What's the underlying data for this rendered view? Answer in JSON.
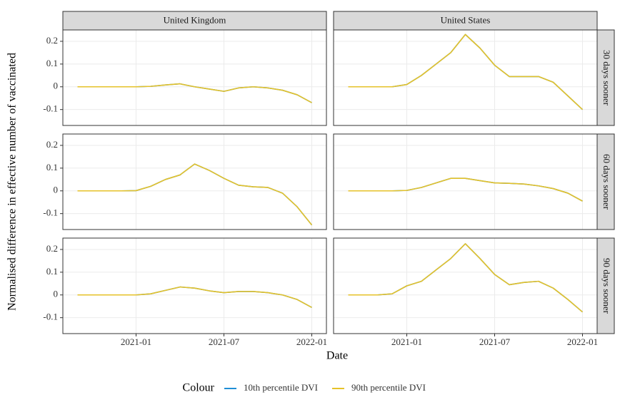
{
  "x_label": "Date",
  "y_label": "Normalised difference in effective number of vaccinated",
  "column_labels": [
    "United Kingdom",
    "United States"
  ],
  "row_labels": [
    "30 days sooner",
    "60 days sooner",
    "90 days sooner"
  ],
  "legend_title": "Colour",
  "chart_data": [
    {
      "type": "line",
      "x": [
        "2020-09",
        "2020-10",
        "2020-11",
        "2020-12",
        "2021-01",
        "2021-02",
        "2021-03",
        "2021-04",
        "2021-05",
        "2021-06",
        "2021-07",
        "2021-08",
        "2021-09",
        "2021-10",
        "2021-11",
        "2021-12",
        "2022-01"
      ],
      "xlim": [
        "2020-08",
        "2022-02"
      ],
      "xticks": [
        "2021-01",
        "2021-07",
        "2022-01"
      ],
      "ylim": [
        -0.17,
        0.25
      ],
      "yticks": [
        -0.1,
        0.0,
        0.1,
        0.2
      ],
      "grid": true,
      "series": [
        {
          "name": "10th percentile DVI",
          "color": "#1f8fd6",
          "values": [
            0,
            0,
            0,
            0,
            0,
            0.002,
            0.008,
            0.013,
            0,
            -0.01,
            -0.02,
            -0.005,
            0,
            -0.005,
            -0.015,
            -0.035,
            -0.07
          ]
        },
        {
          "name": "90th percentile DVI",
          "color": "#e6c229",
          "values": [
            0,
            0,
            0,
            0,
            0,
            0.002,
            0.008,
            0.013,
            0,
            -0.01,
            -0.02,
            -0.005,
            0,
            -0.005,
            -0.015,
            -0.035,
            -0.07
          ]
        }
      ]
    },
    {
      "type": "line",
      "x": [
        "2020-09",
        "2020-10",
        "2020-11",
        "2020-12",
        "2021-01",
        "2021-02",
        "2021-03",
        "2021-04",
        "2021-05",
        "2021-06",
        "2021-07",
        "2021-08",
        "2021-09",
        "2021-10",
        "2021-11",
        "2021-12",
        "2022-01"
      ],
      "xlim": [
        "2020-08",
        "2022-02"
      ],
      "xticks": [
        "2021-01",
        "2021-07",
        "2022-01"
      ],
      "ylim": [
        -0.17,
        0.25
      ],
      "yticks": [
        -0.1,
        0.0,
        0.1,
        0.2
      ],
      "grid": true,
      "series": [
        {
          "name": "10th percentile DVI",
          "color": "#1f8fd6",
          "values": [
            0,
            0,
            0,
            0,
            0.001,
            0.02,
            0.05,
            0.07,
            0.118,
            0.09,
            0.055,
            0.025,
            0.018,
            0.015,
            -0.01,
            -0.07,
            -0.15
          ]
        },
        {
          "name": "90th percentile DVI",
          "color": "#e6c229",
          "values": [
            0,
            0,
            0,
            0,
            0.001,
            0.02,
            0.05,
            0.07,
            0.118,
            0.09,
            0.055,
            0.025,
            0.018,
            0.015,
            -0.01,
            -0.07,
            -0.15
          ]
        }
      ]
    },
    {
      "type": "line",
      "x": [
        "2020-09",
        "2020-10",
        "2020-11",
        "2020-12",
        "2021-01",
        "2021-02",
        "2021-03",
        "2021-04",
        "2021-05",
        "2021-06",
        "2021-07",
        "2021-08",
        "2021-09",
        "2021-10",
        "2021-11",
        "2021-12",
        "2022-01"
      ],
      "xlim": [
        "2020-08",
        "2022-02"
      ],
      "xticks": [
        "2021-01",
        "2021-07",
        "2022-01"
      ],
      "ylim": [
        -0.17,
        0.25
      ],
      "yticks": [
        -0.1,
        0.0,
        0.1,
        0.2
      ],
      "grid": true,
      "series": [
        {
          "name": "10th percentile DVI",
          "color": "#1f8fd6",
          "values": [
            0,
            0,
            0,
            0,
            0,
            0.005,
            0.02,
            0.035,
            0.03,
            0.018,
            0.01,
            0.015,
            0.015,
            0.01,
            0,
            -0.02,
            -0.055
          ]
        },
        {
          "name": "90th percentile DVI",
          "color": "#e6c229",
          "values": [
            0,
            0,
            0,
            0,
            0,
            0.005,
            0.02,
            0.035,
            0.03,
            0.018,
            0.01,
            0.015,
            0.015,
            0.01,
            0,
            -0.02,
            -0.055
          ]
        }
      ]
    },
    {
      "type": "line",
      "x": [
        "2020-09",
        "2020-10",
        "2020-11",
        "2020-12",
        "2021-01",
        "2021-02",
        "2021-03",
        "2021-04",
        "2021-05",
        "2021-06",
        "2021-07",
        "2021-08",
        "2021-09",
        "2021-10",
        "2021-11",
        "2021-12",
        "2022-01"
      ],
      "xlim": [
        "2020-08",
        "2022-02"
      ],
      "xticks": [
        "2021-01",
        "2021-07",
        "2022-01"
      ],
      "ylim": [
        -0.17,
        0.25
      ],
      "yticks": [
        -0.1,
        0.0,
        0.1,
        0.2
      ],
      "grid": true,
      "series": [
        {
          "name": "10th percentile DVI",
          "color": "#1f8fd6",
          "values": [
            0,
            0,
            0,
            0,
            0.01,
            0.05,
            0.1,
            0.15,
            0.23,
            0.17,
            0.095,
            0.045,
            0.045,
            0.045,
            0.02,
            -0.04,
            -0.1
          ]
        },
        {
          "name": "90th percentile DVI",
          "color": "#e6c229",
          "values": [
            0,
            0,
            0,
            0,
            0.01,
            0.05,
            0.1,
            0.15,
            0.23,
            0.17,
            0.095,
            0.045,
            0.045,
            0.045,
            0.02,
            -0.04,
            -0.1
          ]
        }
      ]
    },
    {
      "type": "line",
      "x": [
        "2020-09",
        "2020-10",
        "2020-11",
        "2020-12",
        "2021-01",
        "2021-02",
        "2021-03",
        "2021-04",
        "2021-05",
        "2021-06",
        "2021-07",
        "2021-08",
        "2021-09",
        "2021-10",
        "2021-11",
        "2021-12",
        "2022-01"
      ],
      "xlim": [
        "2020-08",
        "2022-02"
      ],
      "xticks": [
        "2021-01",
        "2021-07",
        "2022-01"
      ],
      "ylim": [
        -0.17,
        0.25
      ],
      "yticks": [
        -0.1,
        0.0,
        0.1,
        0.2
      ],
      "grid": true,
      "series": [
        {
          "name": "10th percentile DVI",
          "color": "#1f8fd6",
          "values": [
            0,
            0,
            0,
            0,
            0.002,
            0.015,
            0.035,
            0.055,
            0.055,
            0.045,
            0.035,
            0.033,
            0.03,
            0.022,
            0.01,
            -0.01,
            -0.045
          ]
        },
        {
          "name": "90th percentile DVI",
          "color": "#e6c229",
          "values": [
            0,
            0,
            0,
            0,
            0.002,
            0.015,
            0.035,
            0.055,
            0.055,
            0.045,
            0.035,
            0.033,
            0.03,
            0.022,
            0.01,
            -0.01,
            -0.045
          ]
        }
      ]
    },
    {
      "type": "line",
      "x": [
        "2020-09",
        "2020-10",
        "2020-11",
        "2020-12",
        "2021-01",
        "2021-02",
        "2021-03",
        "2021-04",
        "2021-05",
        "2021-06",
        "2021-07",
        "2021-08",
        "2021-09",
        "2021-10",
        "2021-11",
        "2021-12",
        "2022-01"
      ],
      "xlim": [
        "2020-08",
        "2022-02"
      ],
      "xticks": [
        "2021-01",
        "2021-07",
        "2022-01"
      ],
      "ylim": [
        -0.17,
        0.25
      ],
      "yticks": [
        -0.1,
        0.0,
        0.1,
        0.2
      ],
      "grid": true,
      "series": [
        {
          "name": "10th percentile DVI",
          "color": "#1f8fd6",
          "values": [
            0,
            0,
            0,
            0.005,
            0.04,
            0.06,
            0.11,
            0.16,
            0.225,
            0.16,
            0.09,
            0.045,
            0.055,
            0.06,
            0.03,
            -0.02,
            -0.075
          ]
        },
        {
          "name": "90th percentile DVI",
          "color": "#e6c229",
          "values": [
            0,
            0,
            0,
            0.005,
            0.04,
            0.06,
            0.11,
            0.16,
            0.225,
            0.16,
            0.09,
            0.045,
            0.055,
            0.06,
            0.03,
            -0.02,
            -0.075
          ]
        }
      ]
    }
  ]
}
